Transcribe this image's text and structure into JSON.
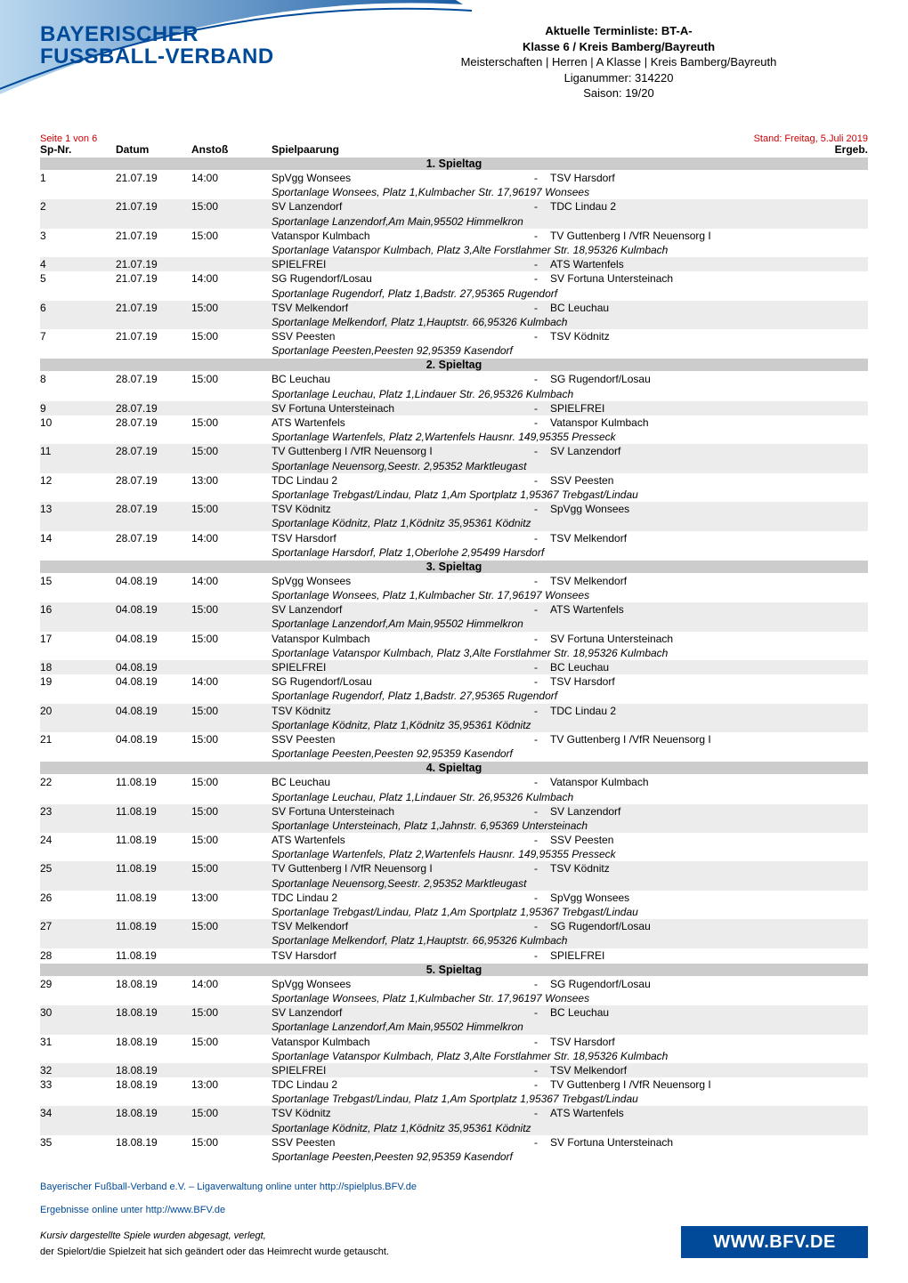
{
  "logo": {
    "line1": "BAYERISCHER",
    "line2": "FUSSBALL-VERBAND"
  },
  "header": {
    "l1": "Aktuelle Terminliste: BT-A-",
    "l2": "Klasse 6 / Kreis Bamberg/Bayreuth",
    "l3": "Meisterschaften | Herren | A Klasse | Kreis Bamberg/Bayreuth",
    "l4": "Liganummer: 314220",
    "l5": "Saison: 19/20"
  },
  "meta": {
    "page_count": "Seite 1 von 6",
    "stand": "Stand: Freitag, 5.Juli 2019"
  },
  "columns": {
    "nr": "Sp-Nr.",
    "date": "Datum",
    "kick": "Anstoß",
    "pair": "Spielpaarung",
    "erg": "Ergeb."
  },
  "matchdays": [
    {
      "title": "1. Spieltag",
      "rows": [
        {
          "nr": "1",
          "date": "21.07.19",
          "kick": "14:00",
          "home": "SpVgg Wonsees",
          "away": "TSV Harsdorf",
          "venue": "Sportanlage Wonsees, Platz 1,Kulmbacher Str. 17,96197 Wonsees",
          "alt": false
        },
        {
          "nr": "2",
          "date": "21.07.19",
          "kick": "15:00",
          "home": "SV Lanzendorf",
          "away": "TDC Lindau 2",
          "venue": "Sportanlage Lanzendorf,Am Main,95502 Himmelkron",
          "alt": true
        },
        {
          "nr": "3",
          "date": "21.07.19",
          "kick": "15:00",
          "home": "Vatanspor Kulmbach",
          "away": "TV Guttenberg I /VfR Neuensorg I",
          "venue": "Sportanlage Vatanspor Kulmbach, Platz 3,Alte Forstlahmer Str. 18,95326 Kulmbach",
          "alt": false
        },
        {
          "nr": "4",
          "date": "21.07.19",
          "kick": "",
          "home": "SPIELFREI",
          "away": "ATS Wartenfels",
          "venue": "",
          "alt": true
        },
        {
          "nr": "5",
          "date": "21.07.19",
          "kick": "14:00",
          "home": "SG Rugendorf/Losau",
          "away": "SV Fortuna Untersteinach",
          "venue": "Sportanlage Rugendorf, Platz 1,Badstr. 27,95365 Rugendorf",
          "alt": false
        },
        {
          "nr": "6",
          "date": "21.07.19",
          "kick": "15:00",
          "home": "TSV Melkendorf",
          "away": "BC Leuchau",
          "venue": "Sportanlage Melkendorf, Platz 1,Hauptstr. 66,95326 Kulmbach",
          "alt": true
        },
        {
          "nr": "7",
          "date": "21.07.19",
          "kick": "15:00",
          "home": "SSV Peesten",
          "away": "TSV Ködnitz",
          "venue": "Sportanlage Peesten,Peesten 92,95359 Kasendorf",
          "alt": false
        }
      ]
    },
    {
      "title": "2. Spieltag",
      "rows": [
        {
          "nr": "8",
          "date": "28.07.19",
          "kick": "15:00",
          "home": "BC Leuchau",
          "away": "SG Rugendorf/Losau",
          "venue": "Sportanlage Leuchau, Platz 1,Lindauer Str. 26,95326 Kulmbach",
          "alt": false
        },
        {
          "nr": "9",
          "date": "28.07.19",
          "kick": "",
          "home": "SV Fortuna Untersteinach",
          "away": "SPIELFREI",
          "venue": "",
          "alt": true
        },
        {
          "nr": "10",
          "date": "28.07.19",
          "kick": "15:00",
          "home": "ATS Wartenfels",
          "away": "Vatanspor Kulmbach",
          "venue": "Sportanlage Wartenfels, Platz 2,Wartenfels Hausnr. 149,95355 Presseck",
          "alt": false
        },
        {
          "nr": "11",
          "date": "28.07.19",
          "kick": "15:00",
          "home": "TV Guttenberg I /VfR Neuensorg I",
          "away": "SV Lanzendorf",
          "venue": "Sportanlage Neuensorg,Seestr. 2,95352 Marktleugast",
          "alt": true
        },
        {
          "nr": "12",
          "date": "28.07.19",
          "kick": "13:00",
          "home": "TDC Lindau 2",
          "away": "SSV Peesten",
          "venue": "Sportanlage Trebgast/Lindau, Platz 1,Am Sportplatz 1,95367 Trebgast/Lindau",
          "alt": false
        },
        {
          "nr": "13",
          "date": "28.07.19",
          "kick": "15:00",
          "home": "TSV Ködnitz",
          "away": "SpVgg Wonsees",
          "venue": "Sportanlage Ködnitz, Platz 1,Ködnitz 35,95361 Ködnitz",
          "alt": true
        },
        {
          "nr": "14",
          "date": "28.07.19",
          "kick": "14:00",
          "home": "TSV Harsdorf",
          "away": "TSV Melkendorf",
          "venue": "Sportanlage Harsdorf, Platz 1,Oberlohe 2,95499 Harsdorf",
          "alt": false
        }
      ]
    },
    {
      "title": "3. Spieltag",
      "rows": [
        {
          "nr": "15",
          "date": "04.08.19",
          "kick": "14:00",
          "home": "SpVgg Wonsees",
          "away": "TSV Melkendorf",
          "venue": "Sportanlage Wonsees, Platz 1,Kulmbacher Str. 17,96197 Wonsees",
          "alt": false
        },
        {
          "nr": "16",
          "date": "04.08.19",
          "kick": "15:00",
          "home": "SV Lanzendorf",
          "away": "ATS Wartenfels",
          "venue": "Sportanlage Lanzendorf,Am Main,95502 Himmelkron",
          "alt": true
        },
        {
          "nr": "17",
          "date": "04.08.19",
          "kick": "15:00",
          "home": "Vatanspor Kulmbach",
          "away": "SV Fortuna Untersteinach",
          "venue": "Sportanlage Vatanspor Kulmbach, Platz 3,Alte Forstlahmer Str. 18,95326 Kulmbach",
          "alt": false
        },
        {
          "nr": "18",
          "date": "04.08.19",
          "kick": "",
          "home": "SPIELFREI",
          "away": "BC Leuchau",
          "venue": "",
          "alt": true
        },
        {
          "nr": "19",
          "date": "04.08.19",
          "kick": "14:00",
          "home": "SG Rugendorf/Losau",
          "away": "TSV Harsdorf",
          "venue": "Sportanlage Rugendorf, Platz 1,Badstr. 27,95365 Rugendorf",
          "alt": false
        },
        {
          "nr": "20",
          "date": "04.08.19",
          "kick": "15:00",
          "home": "TSV Ködnitz",
          "away": "TDC Lindau 2",
          "venue": "Sportanlage Ködnitz, Platz 1,Ködnitz 35,95361 Ködnitz",
          "alt": true
        },
        {
          "nr": "21",
          "date": "04.08.19",
          "kick": "15:00",
          "home": "SSV Peesten",
          "away": "TV Guttenberg I /VfR Neuensorg I",
          "venue": "Sportanlage Peesten,Peesten 92,95359 Kasendorf",
          "alt": false
        }
      ]
    },
    {
      "title": "4. Spieltag",
      "rows": [
        {
          "nr": "22",
          "date": "11.08.19",
          "kick": "15:00",
          "home": "BC Leuchau",
          "away": "Vatanspor Kulmbach",
          "venue": "Sportanlage Leuchau, Platz 1,Lindauer Str. 26,95326 Kulmbach",
          "alt": false
        },
        {
          "nr": "23",
          "date": "11.08.19",
          "kick": "15:00",
          "home": "SV Fortuna Untersteinach",
          "away": "SV Lanzendorf",
          "venue": "Sportanlage Untersteinach, Platz 1,Jahnstr. 6,95369 Untersteinach",
          "alt": true
        },
        {
          "nr": "24",
          "date": "11.08.19",
          "kick": "15:00",
          "home": "ATS Wartenfels",
          "away": "SSV Peesten",
          "venue": "Sportanlage Wartenfels, Platz 2,Wartenfels Hausnr. 149,95355 Presseck",
          "alt": false
        },
        {
          "nr": "25",
          "date": "11.08.19",
          "kick": "15:00",
          "home": "TV Guttenberg I /VfR Neuensorg I",
          "away": "TSV Ködnitz",
          "venue": "Sportanlage Neuensorg,Seestr. 2,95352 Marktleugast",
          "alt": true
        },
        {
          "nr": "26",
          "date": "11.08.19",
          "kick": "13:00",
          "home": "TDC Lindau 2",
          "away": "SpVgg Wonsees",
          "venue": "Sportanlage Trebgast/Lindau, Platz 1,Am Sportplatz 1,95367 Trebgast/Lindau",
          "alt": false
        },
        {
          "nr": "27",
          "date": "11.08.19",
          "kick": "15:00",
          "home": "TSV Melkendorf",
          "away": "SG Rugendorf/Losau",
          "venue": "Sportanlage Melkendorf, Platz 1,Hauptstr. 66,95326 Kulmbach",
          "alt": true
        },
        {
          "nr": "28",
          "date": "11.08.19",
          "kick": "",
          "home": "TSV Harsdorf",
          "away": "SPIELFREI",
          "venue": "",
          "alt": false
        }
      ]
    },
    {
      "title": "5. Spieltag",
      "rows": [
        {
          "nr": "29",
          "date": "18.08.19",
          "kick": "14:00",
          "home": "SpVgg Wonsees",
          "away": "SG Rugendorf/Losau",
          "venue": "Sportanlage Wonsees, Platz 1,Kulmbacher Str. 17,96197 Wonsees",
          "alt": false
        },
        {
          "nr": "30",
          "date": "18.08.19",
          "kick": "15:00",
          "home": "SV Lanzendorf",
          "away": "BC Leuchau",
          "venue": "Sportanlage Lanzendorf,Am Main,95502 Himmelkron",
          "alt": true
        },
        {
          "nr": "31",
          "date": "18.08.19",
          "kick": "15:00",
          "home": "Vatanspor Kulmbach",
          "away": "TSV Harsdorf",
          "venue": "Sportanlage Vatanspor Kulmbach, Platz 3,Alte Forstlahmer Str. 18,95326 Kulmbach",
          "alt": false
        },
        {
          "nr": "32",
          "date": "18.08.19",
          "kick": "",
          "home": "SPIELFREI",
          "away": "TSV Melkendorf",
          "venue": "",
          "alt": true
        },
        {
          "nr": "33",
          "date": "18.08.19",
          "kick": "13:00",
          "home": "TDC Lindau 2",
          "away": "TV Guttenberg I /VfR Neuensorg I",
          "venue": "Sportanlage Trebgast/Lindau, Platz 1,Am Sportplatz 1,95367 Trebgast/Lindau",
          "alt": false
        },
        {
          "nr": "34",
          "date": "18.08.19",
          "kick": "15:00",
          "home": "TSV Ködnitz",
          "away": "ATS Wartenfels",
          "venue": "Sportanlage Ködnitz, Platz 1,Ködnitz 35,95361 Ködnitz",
          "alt": true
        },
        {
          "nr": "35",
          "date": "18.08.19",
          "kick": "15:00",
          "home": "SSV Peesten",
          "away": "SV Fortuna Untersteinach",
          "venue": "Sportanlage Peesten,Peesten 92,95359 Kasendorf",
          "alt": false
        }
      ]
    }
  ],
  "footer": {
    "line1": "Bayerischer Fußball-Verband e.V. – Ligaverwaltung online unter http://spielplus.BFV.de",
    "line2": "Ergebnisse online unter http://www.BFV.de",
    "note1": "Kursiv dargestellte Spiele wurden abgesagt, verlegt,",
    "note2": "der Spielort/die Spielzeit hat sich geändert oder das Heimrecht wurde getauscht.",
    "bfv": "WWW.BFV.DE"
  }
}
